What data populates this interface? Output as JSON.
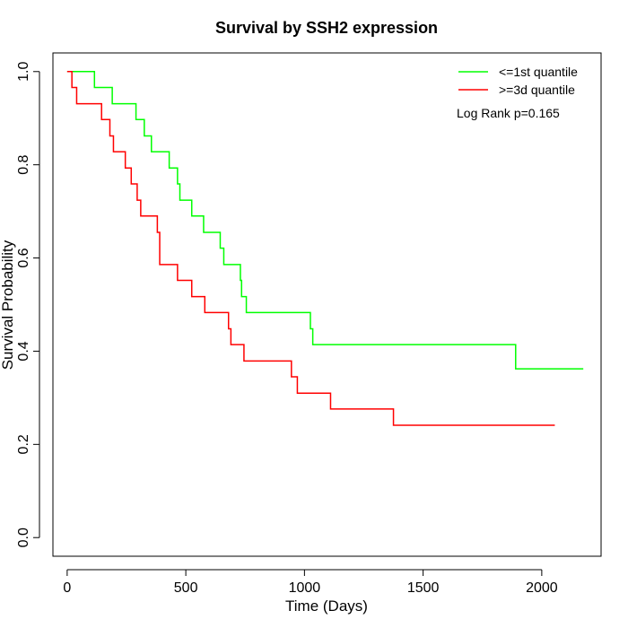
{
  "chart_data": {
    "type": "line",
    "title": "Survival by SSH2 expression",
    "xlabel": "Time (Days)",
    "ylabel": "Survival Probability",
    "xlim": [
      -60,
      2250
    ],
    "ylim": [
      -0.04,
      1.04
    ],
    "xticks": [
      0,
      500,
      1000,
      1500,
      2000
    ],
    "yticks": [
      0.0,
      0.2,
      0.4,
      0.6,
      0.8,
      1.0
    ],
    "xtick_labels": [
      "0",
      "500",
      "1000",
      "1500",
      "2000"
    ],
    "ytick_labels": [
      "0.0",
      "0.2",
      "0.4",
      "0.6",
      "0.8",
      "1.0"
    ],
    "grid": false,
    "legend_position": "top-right",
    "annotation": "Log Rank p=0.165",
    "series": [
      {
        "name": "<=1st quantile",
        "color": "#00ff00",
        "step": true,
        "x": [
          0,
          115,
          190,
          290,
          325,
          355,
          430,
          465,
          475,
          525,
          575,
          645,
          660,
          730,
          735,
          755,
          1025,
          1035,
          1890,
          2175
        ],
        "y": [
          1.0,
          0.966,
          0.931,
          0.897,
          0.862,
          0.828,
          0.793,
          0.759,
          0.724,
          0.69,
          0.655,
          0.621,
          0.586,
          0.552,
          0.517,
          0.483,
          0.448,
          0.414,
          0.362,
          0.362
        ]
      },
      {
        "name": ">=3d quantile",
        "color": "#ff0000",
        "step": true,
        "x": [
          0,
          20,
          40,
          145,
          180,
          195,
          245,
          270,
          295,
          310,
          380,
          390,
          465,
          525,
          580,
          680,
          690,
          745,
          945,
          970,
          1110,
          1375,
          2055
        ],
        "y": [
          1.0,
          0.966,
          0.931,
          0.897,
          0.862,
          0.828,
          0.793,
          0.759,
          0.724,
          0.69,
          0.655,
          0.586,
          0.552,
          0.517,
          0.483,
          0.448,
          0.414,
          0.379,
          0.345,
          0.31,
          0.276,
          0.241,
          0.241
        ]
      }
    ]
  }
}
